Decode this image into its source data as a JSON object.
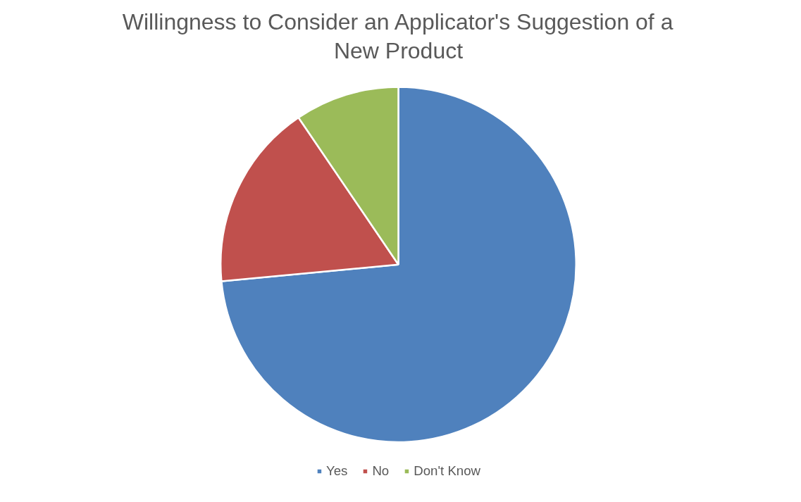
{
  "chart_data": {
    "type": "pie",
    "title": "Willingness to Consider an Applicator's Suggestion of a New Product",
    "categories": [
      "Yes",
      "No",
      "Don't Know"
    ],
    "values": [
      73.5,
      17,
      9.5
    ],
    "colors": [
      "#4f81bd",
      "#c0504d",
      "#9bbb59"
    ],
    "legend": "bottom"
  }
}
